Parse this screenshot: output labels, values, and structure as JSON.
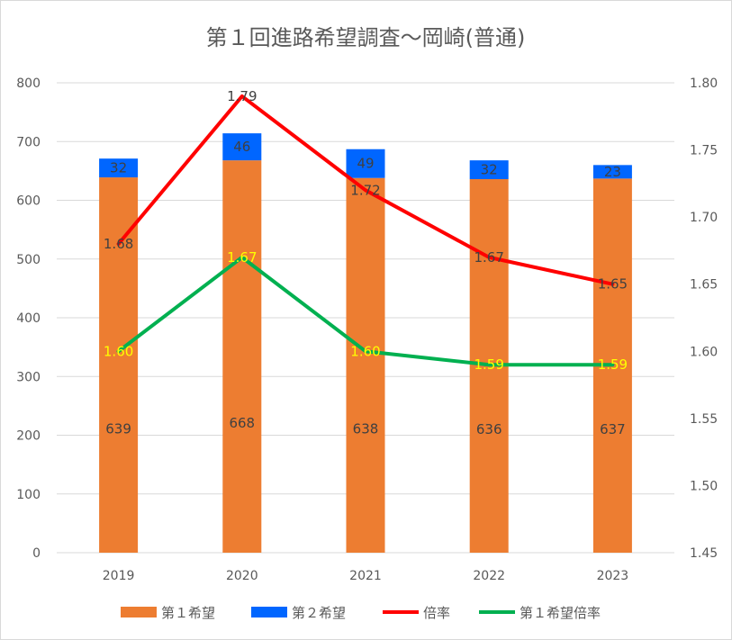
{
  "chart_data": {
    "type": "bar",
    "title": "第１回進路希望調査〜岡崎(普通)",
    "categories": [
      "2019",
      "2020",
      "2021",
      "2022",
      "2023"
    ],
    "stacked": true,
    "series": [
      {
        "name": "第１希望",
        "kind": "bar",
        "axis": "left",
        "color": "#ed7d31",
        "labelColor": "#404040",
        "values": [
          639,
          668,
          638,
          636,
          637
        ],
        "labels": [
          "639",
          "668",
          "638",
          "636",
          "637"
        ]
      },
      {
        "name": "第２希望",
        "kind": "bar",
        "axis": "left",
        "color": "#0066ff",
        "labelColor": "#404040",
        "values": [
          32,
          46,
          49,
          32,
          23
        ],
        "labels": [
          "32",
          "46",
          "49",
          "32",
          "23"
        ]
      },
      {
        "name": "倍率",
        "kind": "line",
        "axis": "right",
        "color": "#ff0000",
        "labelColor": "#404040",
        "values": [
          1.68,
          1.79,
          1.72,
          1.67,
          1.65
        ],
        "labels": [
          "1.68",
          "1.79",
          "1.72",
          "1.67",
          "1.65"
        ]
      },
      {
        "name": "第１希望倍率",
        "kind": "line",
        "axis": "right",
        "color": "#00b050",
        "labelColor": "#ffff00",
        "values": [
          1.6,
          1.67,
          1.6,
          1.59,
          1.59
        ],
        "labels": [
          "1.60",
          "1.67",
          "1.60",
          "1.59",
          "1.59"
        ]
      }
    ],
    "yLeft": {
      "min": 0,
      "max": 800,
      "ticks": [
        "0",
        "100",
        "200",
        "300",
        "400",
        "500",
        "600",
        "700",
        "800"
      ]
    },
    "yRight": {
      "min": 1.45,
      "max": 1.8,
      "ticks": [
        "1.45",
        "1.50",
        "1.55",
        "1.60",
        "1.65",
        "1.70",
        "1.75",
        "1.80"
      ]
    },
    "grid": true,
    "legend": "bottom"
  }
}
